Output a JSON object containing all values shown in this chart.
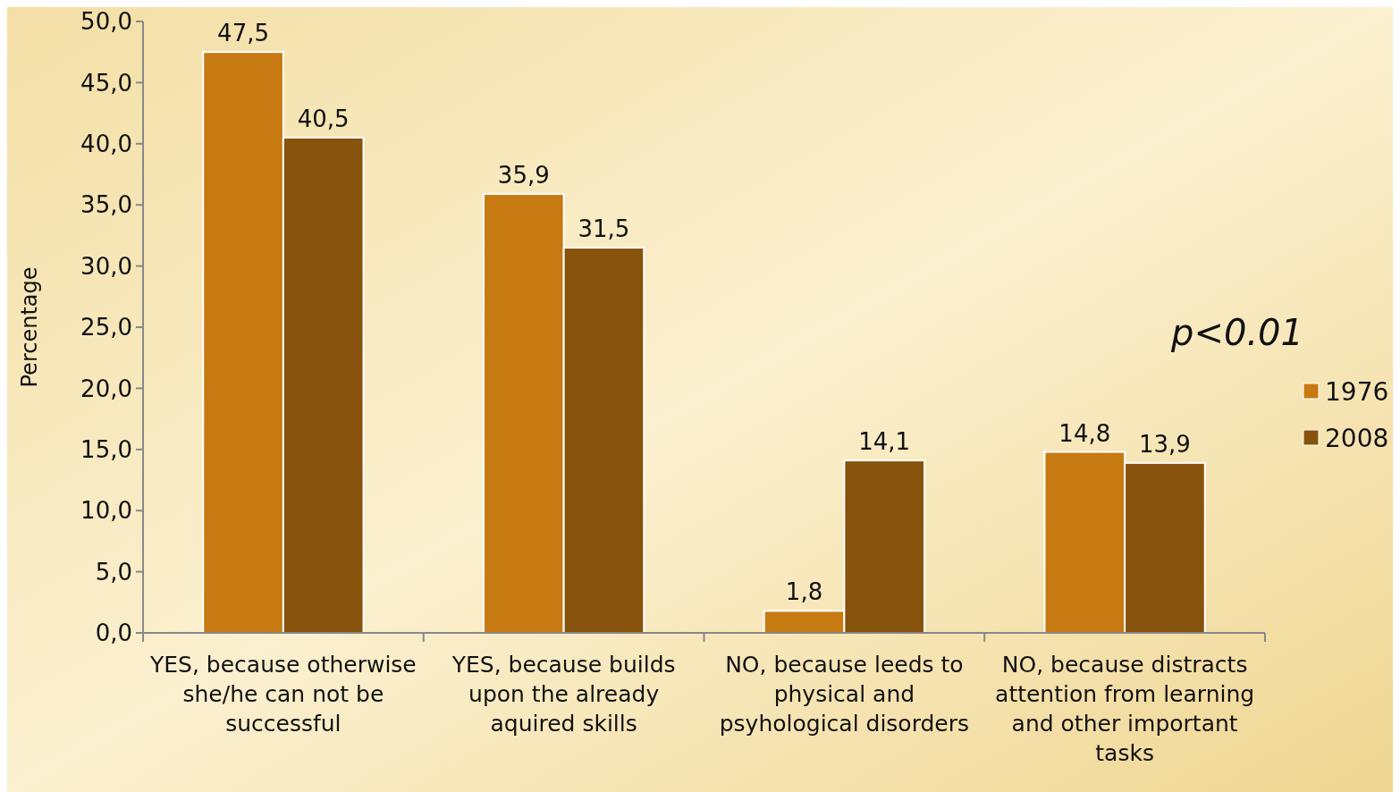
{
  "chart_data": {
    "type": "bar",
    "ylabel": "Percentage",
    "categories": [
      "YES, because otherwise she/he can not be successful",
      "YES, because builds upon the already aquired skills",
      "NO, because leeds to physical and psyhological disorders",
      "NO, because distracts attention from learning and other important tasks"
    ],
    "series": [
      {
        "name": "1976",
        "color": "#c87a12",
        "values": [
          47.5,
          35.9,
          1.8,
          14.8
        ],
        "value_labels": [
          "47,5",
          "35,9",
          "1,8",
          "14,8"
        ]
      },
      {
        "name": "2008",
        "color": "#87520b",
        "values": [
          40.5,
          31.5,
          14.1,
          13.9
        ],
        "value_labels": [
          "40,5",
          "31,5",
          "14,1",
          "13,9"
        ]
      }
    ],
    "ylim": [
      0,
      50
    ],
    "yticks": [
      {
        "value": 0,
        "label": "0,0"
      },
      {
        "value": 5,
        "label": "5,0"
      },
      {
        "value": 10,
        "label": "10,0"
      },
      {
        "value": 15,
        "label": "15,0"
      },
      {
        "value": 20,
        "label": "20,0"
      },
      {
        "value": 25,
        "label": "25,0"
      },
      {
        "value": 30,
        "label": "30,0"
      },
      {
        "value": 35,
        "label": "35,0"
      },
      {
        "value": 40,
        "label": "40,0"
      },
      {
        "value": 45,
        "label": "45,0"
      },
      {
        "value": 50,
        "label": "50,0"
      }
    ],
    "annotations": [
      "p<0.01"
    ],
    "legend": "right",
    "grid": false
  }
}
